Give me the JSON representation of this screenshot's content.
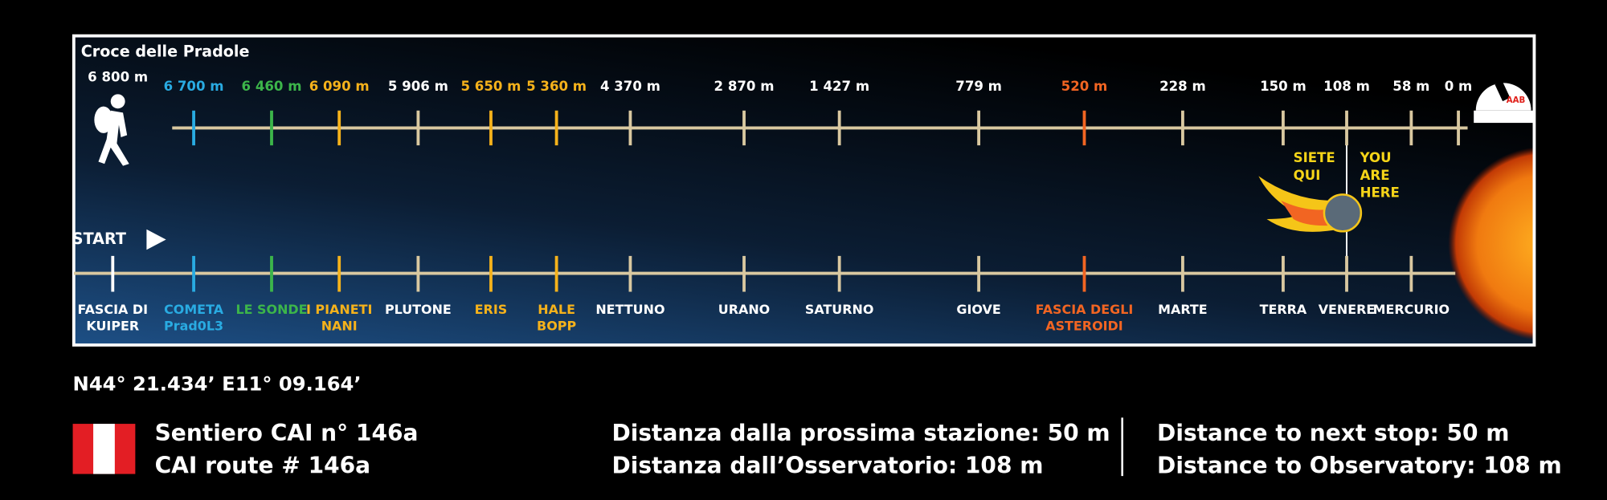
{
  "header": {
    "title": "Croce delle Pradole"
  },
  "start_label": "START",
  "stops": [
    {
      "distance": "6 800 m",
      "name": [
        "FASCIA DI",
        "KUIPER"
      ],
      "color": "#ffffff"
    },
    {
      "distance": "6 700 m",
      "name": [
        "COMETA",
        "Prad0L3"
      ],
      "color": "#29abe2"
    },
    {
      "distance": "6 460 m",
      "name": [
        "LE SONDE"
      ],
      "color": "#3cb54a"
    },
    {
      "distance": "6 090 m",
      "name": [
        "I PIANETI",
        "NANI"
      ],
      "color": "#f5b21b"
    },
    {
      "distance": "5 906 m",
      "name": [
        "PLUTONE"
      ],
      "color": "#ffffff"
    },
    {
      "distance": "5 650 m",
      "name": [
        "ERIS"
      ],
      "color": "#f5b21b"
    },
    {
      "distance": "5 360 m",
      "name": [
        "HALE",
        "BOPP"
      ],
      "color": "#f5b21b"
    },
    {
      "distance": "4 370 m",
      "name": [
        "NETTUNO"
      ],
      "color": "#ffffff"
    },
    {
      "distance": "2 870 m",
      "name": [
        "URANO"
      ],
      "color": "#ffffff"
    },
    {
      "distance": "1 427 m",
      "name": [
        "SATURNO"
      ],
      "color": "#ffffff"
    },
    {
      "distance": "779 m",
      "name": [
        "GIOVE"
      ],
      "color": "#ffffff"
    },
    {
      "distance": "520 m",
      "name": [
        "FASCIA DEGLI",
        "ASTEROIDI"
      ],
      "color": "#f26522"
    },
    {
      "distance": "228 m",
      "name": [
        "MARTE"
      ],
      "color": "#ffffff"
    },
    {
      "distance": "150 m",
      "name": [
        "TERRA"
      ],
      "color": "#ffffff"
    },
    {
      "distance": "108 m",
      "name": [
        "VENERE"
      ],
      "color": "#ffffff"
    },
    {
      "distance": "58 m",
      "name": [
        "MERCURIO"
      ],
      "color": "#ffffff"
    }
  ],
  "end_distance": "0 m",
  "observatory_logo": "AAB",
  "here_it": [
    "SIETE",
    "QUI"
  ],
  "here_en": [
    "YOU",
    "ARE",
    "HERE"
  ],
  "coordinates": "N44° 21.434’ E11° 09.164’",
  "route": [
    "Sentiero CAI n° 146a",
    "CAI route # 146a"
  ],
  "info_it": [
    "Distanza dalla prossima stazione: 50 m",
    "Distanza dall’Osservatorio: 108 m"
  ],
  "info_en": [
    "Distance to next stop: 50 m",
    "Distance to Observatory: 108 m"
  ]
}
